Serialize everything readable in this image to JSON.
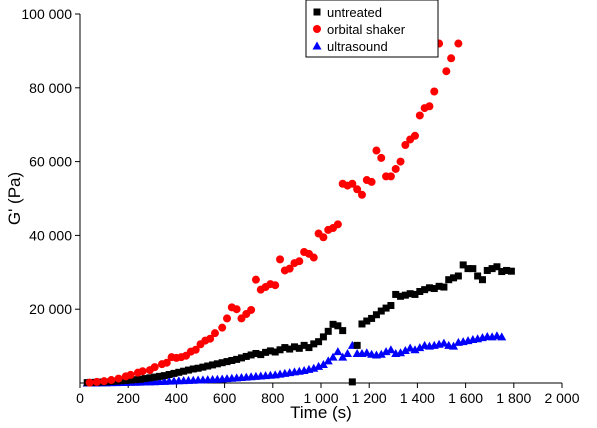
{
  "chart_data": {
    "type": "scatter",
    "xlabel": "Time (s)",
    "ylabel": "G' (Pa)",
    "xlim": [
      0,
      2000
    ],
    "ylim": [
      0,
      100000
    ],
    "xticks": [
      0,
      200,
      400,
      600,
      800,
      1000,
      1200,
      1400,
      1600,
      1800,
      2000
    ],
    "xtick_labels": [
      "0",
      "200",
      "400",
      "600",
      "800",
      "1 000",
      "1 200",
      "1 400",
      "1 600",
      "1 800",
      "2 000"
    ],
    "yticks": [
      20000,
      40000,
      60000,
      80000,
      100000
    ],
    "ytick_labels": [
      "20 000",
      "40 000",
      "60 000",
      "80 000",
      "100 000"
    ],
    "grid": false,
    "legend_position": "top-center",
    "series": [
      {
        "name": "untreated",
        "marker": "square",
        "color": "#000000",
        "points": [
          [
            30,
            100
          ],
          [
            50,
            150
          ],
          [
            70,
            200
          ],
          [
            90,
            250
          ],
          [
            110,
            300
          ],
          [
            130,
            400
          ],
          [
            150,
            500
          ],
          [
            170,
            600
          ],
          [
            190,
            700
          ],
          [
            210,
            800
          ],
          [
            230,
            900
          ],
          [
            250,
            1000
          ],
          [
            270,
            1200
          ],
          [
            290,
            1400
          ],
          [
            310,
            1600
          ],
          [
            330,
            1800
          ],
          [
            350,
            2000
          ],
          [
            370,
            2300
          ],
          [
            390,
            2600
          ],
          [
            410,
            2900
          ],
          [
            430,
            3200
          ],
          [
            450,
            3500
          ],
          [
            470,
            3800
          ],
          [
            490,
            4000
          ],
          [
            510,
            4300
          ],
          [
            530,
            4600
          ],
          [
            550,
            4900
          ],
          [
            570,
            5200
          ],
          [
            590,
            5500
          ],
          [
            610,
            5800
          ],
          [
            630,
            6100
          ],
          [
            650,
            6400
          ],
          [
            670,
            6800
          ],
          [
            690,
            7200
          ],
          [
            710,
            7600
          ],
          [
            730,
            8000
          ],
          [
            750,
            7700
          ],
          [
            770,
            8300
          ],
          [
            790,
            8700
          ],
          [
            810,
            8400
          ],
          [
            830,
            9000
          ],
          [
            850,
            9600
          ],
          [
            870,
            9200
          ],
          [
            890,
            9800
          ],
          [
            910,
            9400
          ],
          [
            930,
            10200
          ],
          [
            950,
            9600
          ],
          [
            970,
            10600
          ],
          [
            990,
            11200
          ],
          [
            1010,
            12500
          ],
          [
            1030,
            14000
          ],
          [
            1050,
            15900
          ],
          [
            1070,
            15500
          ],
          [
            1090,
            14200
          ],
          [
            1130,
            300
          ],
          [
            1150,
            10200
          ],
          [
            1170,
            16000
          ],
          [
            1190,
            16800
          ],
          [
            1210,
            17500
          ],
          [
            1230,
            18500
          ],
          [
            1250,
            19500
          ],
          [
            1270,
            20300
          ],
          [
            1290,
            21000
          ],
          [
            1310,
            24000
          ],
          [
            1330,
            23500
          ],
          [
            1350,
            23800
          ],
          [
            1370,
            24200
          ],
          [
            1390,
            24000
          ],
          [
            1410,
            24800
          ],
          [
            1430,
            25300
          ],
          [
            1450,
            25800
          ],
          [
            1470,
            25600
          ],
          [
            1490,
            26200
          ],
          [
            1510,
            26000
          ],
          [
            1530,
            28000
          ],
          [
            1550,
            28500
          ],
          [
            1570,
            29000
          ],
          [
            1590,
            32000
          ],
          [
            1610,
            31000
          ],
          [
            1630,
            31000
          ],
          [
            1650,
            29000
          ],
          [
            1670,
            28000
          ],
          [
            1690,
            30500
          ],
          [
            1710,
            31000
          ],
          [
            1730,
            31500
          ],
          [
            1750,
            30200
          ],
          [
            1770,
            30500
          ],
          [
            1790,
            30300
          ]
        ]
      },
      {
        "name": "orbital shaker",
        "marker": "circle",
        "color": "#ff0000",
        "points": [
          [
            40,
            100
          ],
          [
            70,
            300
          ],
          [
            100,
            500
          ],
          [
            130,
            800
          ],
          [
            160,
            1200
          ],
          [
            190,
            1800
          ],
          [
            210,
            2200
          ],
          [
            240,
            2800
          ],
          [
            260,
            3200
          ],
          [
            290,
            3500
          ],
          [
            310,
            4300
          ],
          [
            340,
            5100
          ],
          [
            360,
            5500
          ],
          [
            380,
            7000
          ],
          [
            400,
            6800
          ],
          [
            420,
            7000
          ],
          [
            440,
            7400
          ],
          [
            460,
            8500
          ],
          [
            480,
            9000
          ],
          [
            500,
            10500
          ],
          [
            520,
            11500
          ],
          [
            540,
            12000
          ],
          [
            560,
            13500
          ],
          [
            590,
            15000
          ],
          [
            610,
            17500
          ],
          [
            630,
            20500
          ],
          [
            650,
            20000
          ],
          [
            670,
            17500
          ],
          [
            690,
            18700
          ],
          [
            710,
            19800
          ],
          [
            730,
            28000
          ],
          [
            750,
            25300
          ],
          [
            770,
            26000
          ],
          [
            790,
            26800
          ],
          [
            810,
            26500
          ],
          [
            830,
            33500
          ],
          [
            850,
            30500
          ],
          [
            870,
            31000
          ],
          [
            890,
            32500
          ],
          [
            910,
            33000
          ],
          [
            930,
            35500
          ],
          [
            950,
            35000
          ],
          [
            970,
            34000
          ],
          [
            990,
            40500
          ],
          [
            1010,
            39500
          ],
          [
            1030,
            41500
          ],
          [
            1050,
            42000
          ],
          [
            1070,
            43000
          ],
          [
            1090,
            54000
          ],
          [
            1110,
            53500
          ],
          [
            1130,
            54000
          ],
          [
            1150,
            52500
          ],
          [
            1170,
            51000
          ],
          [
            1190,
            55000
          ],
          [
            1210,
            54500
          ],
          [
            1230,
            63000
          ],
          [
            1250,
            61000
          ],
          [
            1270,
            56000
          ],
          [
            1290,
            56000
          ],
          [
            1310,
            58000
          ],
          [
            1330,
            60000
          ],
          [
            1350,
            64500
          ],
          [
            1370,
            66000
          ],
          [
            1390,
            67000
          ],
          [
            1410,
            72500
          ],
          [
            1430,
            74500
          ],
          [
            1450,
            75000
          ],
          [
            1470,
            79000
          ],
          [
            1490,
            92000
          ],
          [
            1520,
            84500
          ],
          [
            1540,
            88000
          ],
          [
            1570,
            92000
          ]
        ]
      },
      {
        "name": "ultrasound",
        "marker": "triangle",
        "color": "#0000ff",
        "points": [
          [
            30,
            0
          ],
          [
            50,
            0
          ],
          [
            70,
            0
          ],
          [
            90,
            50
          ],
          [
            110,
            50
          ],
          [
            130,
            100
          ],
          [
            150,
            100
          ],
          [
            170,
            150
          ],
          [
            190,
            150
          ],
          [
            210,
            200
          ],
          [
            230,
            200
          ],
          [
            250,
            250
          ],
          [
            270,
            300
          ],
          [
            290,
            300
          ],
          [
            310,
            350
          ],
          [
            330,
            400
          ],
          [
            350,
            450
          ],
          [
            370,
            500
          ],
          [
            390,
            550
          ],
          [
            410,
            600
          ],
          [
            430,
            650
          ],
          [
            450,
            700
          ],
          [
            470,
            750
          ],
          [
            490,
            800
          ],
          [
            510,
            850
          ],
          [
            530,
            900
          ],
          [
            550,
            950
          ],
          [
            570,
            1000
          ],
          [
            590,
            1100
          ],
          [
            610,
            1200
          ],
          [
            630,
            1300
          ],
          [
            650,
            1400
          ],
          [
            670,
            1500
          ],
          [
            690,
            1600
          ],
          [
            710,
            1700
          ],
          [
            730,
            1800
          ],
          [
            750,
            1900
          ],
          [
            770,
            2000
          ],
          [
            790,
            2100
          ],
          [
            810,
            2200
          ],
          [
            830,
            2400
          ],
          [
            850,
            2600
          ],
          [
            870,
            2800
          ],
          [
            890,
            3000
          ],
          [
            910,
            3200
          ],
          [
            930,
            3400
          ],
          [
            950,
            3700
          ],
          [
            970,
            4000
          ],
          [
            990,
            4500
          ],
          [
            1010,
            5000
          ],
          [
            1030,
            6000
          ],
          [
            1050,
            7000
          ],
          [
            1070,
            8500
          ],
          [
            1090,
            7000
          ],
          [
            1110,
            8000
          ],
          [
            1130,
            10200
          ],
          [
            1150,
            8000
          ],
          [
            1170,
            8000
          ],
          [
            1190,
            8200
          ],
          [
            1210,
            7800
          ],
          [
            1230,
            7600
          ],
          [
            1250,
            7800
          ],
          [
            1270,
            8500
          ],
          [
            1290,
            9000
          ],
          [
            1310,
            8000
          ],
          [
            1330,
            8200
          ],
          [
            1350,
            8800
          ],
          [
            1370,
            9500
          ],
          [
            1390,
            9000
          ],
          [
            1410,
            9600
          ],
          [
            1430,
            10200
          ],
          [
            1450,
            10000
          ],
          [
            1470,
            10200
          ],
          [
            1490,
            10500
          ],
          [
            1510,
            10800
          ],
          [
            1530,
            10200
          ],
          [
            1550,
            10000
          ],
          [
            1570,
            11000
          ],
          [
            1590,
            11200
          ],
          [
            1610,
            11500
          ],
          [
            1630,
            11800
          ],
          [
            1650,
            12000
          ],
          [
            1670,
            12300
          ],
          [
            1690,
            12600
          ],
          [
            1710,
            12500
          ],
          [
            1730,
            12800
          ],
          [
            1750,
            12500
          ]
        ]
      }
    ]
  }
}
